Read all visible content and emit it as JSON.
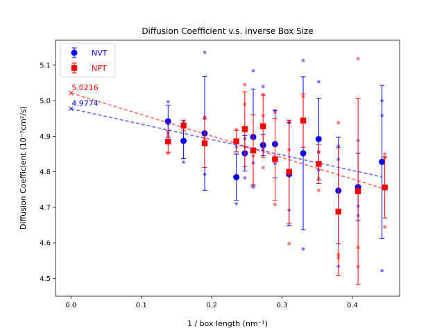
{
  "chart_data": {
    "type": "scatter",
    "title": "Diffusion Coefficient v.s. inverse Box Size",
    "xlabel": "1 / box length (nm⁻¹)",
    "ylabel": "Diffusion Coefficient (10⁻⁵cm²/s)",
    "xlim": [
      -0.022,
      0.467
    ],
    "ylim": [
      4.45,
      5.17
    ],
    "xticks": [
      0.0,
      0.1,
      0.2,
      0.3,
      0.4
    ],
    "yticks": [
      4.5,
      4.6,
      4.7,
      4.8,
      4.9,
      5.0,
      5.1
    ],
    "legend_position": "top-left",
    "series": [
      {
        "name": "NVT",
        "color": "#0000ff",
        "marker": "circle",
        "mean": [
          {
            "x": 0.138,
            "y": 4.942,
            "err": 0.045
          },
          {
            "x": 0.16,
            "y": 4.887,
            "err": 0.05
          },
          {
            "x": 0.19,
            "y": 4.908,
            "err": 0.16
          },
          {
            "x": 0.235,
            "y": 4.785,
            "err": 0.065
          },
          {
            "x": 0.247,
            "y": 4.852,
            "err": 0.05
          },
          {
            "x": 0.259,
            "y": 4.898,
            "err": 0.135
          },
          {
            "x": 0.273,
            "y": 4.875,
            "err": 0.03
          },
          {
            "x": 0.29,
            "y": 4.878,
            "err": 0.095
          },
          {
            "x": 0.31,
            "y": 4.793,
            "err": 0.145
          },
          {
            "x": 0.33,
            "y": 4.852,
            "err": 0.215
          },
          {
            "x": 0.352,
            "y": 4.892,
            "err": 0.115
          },
          {
            "x": 0.38,
            "y": 4.747,
            "err": 0.15
          },
          {
            "x": 0.408,
            "y": 4.757,
            "err": 0.095
          },
          {
            "x": 0.442,
            "y": 4.828,
            "err": 0.215
          }
        ],
        "raw": [
          {
            "x": 0.138,
            "y": 4.997
          },
          {
            "x": 0.138,
            "y": 4.935
          },
          {
            "x": 0.138,
            "y": 4.91
          },
          {
            "x": 0.16,
            "y": 4.942
          },
          {
            "x": 0.16,
            "y": 4.827
          },
          {
            "x": 0.19,
            "y": 5.136
          },
          {
            "x": 0.19,
            "y": 4.952
          },
          {
            "x": 0.19,
            "y": 4.793
          },
          {
            "x": 0.235,
            "y": 4.71
          },
          {
            "x": 0.235,
            "y": 4.87
          },
          {
            "x": 0.247,
            "y": 4.893
          },
          {
            "x": 0.247,
            "y": 4.783
          },
          {
            "x": 0.259,
            "y": 5.084
          },
          {
            "x": 0.259,
            "y": 4.757
          },
          {
            "x": 0.259,
            "y": 4.825
          },
          {
            "x": 0.273,
            "y": 5.04
          },
          {
            "x": 0.273,
            "y": 4.862
          },
          {
            "x": 0.29,
            "y": 4.972
          },
          {
            "x": 0.29,
            "y": 4.823
          },
          {
            "x": 0.31,
            "y": 4.938
          },
          {
            "x": 0.31,
            "y": 4.692
          },
          {
            "x": 0.33,
            "y": 5.113
          },
          {
            "x": 0.33,
            "y": 4.583
          },
          {
            "x": 0.33,
            "y": 4.85
          },
          {
            "x": 0.352,
            "y": 5.053
          },
          {
            "x": 0.352,
            "y": 4.805
          },
          {
            "x": 0.352,
            "y": 4.855
          },
          {
            "x": 0.38,
            "y": 4.872
          },
          {
            "x": 0.38,
            "y": 4.835
          },
          {
            "x": 0.38,
            "y": 4.534
          },
          {
            "x": 0.408,
            "y": 4.888
          },
          {
            "x": 0.408,
            "y": 4.703
          },
          {
            "x": 0.408,
            "y": 4.677
          },
          {
            "x": 0.442,
            "y": 5.0
          },
          {
            "x": 0.442,
            "y": 4.958
          },
          {
            "x": 0.442,
            "y": 4.522
          }
        ],
        "fit": {
          "intercept": 4.9774,
          "slope": -0.434,
          "x_end": 0.442
        },
        "intercept_label": "4.9774"
      },
      {
        "name": "NPT",
        "color": "#ff0000",
        "marker": "square",
        "mean": [
          {
            "x": 0.138,
            "y": 4.885,
            "err": 0.03
          },
          {
            "x": 0.16,
            "y": 4.93,
            "err": 0.015
          },
          {
            "x": 0.19,
            "y": 4.88,
            "err": 0.068
          },
          {
            "x": 0.235,
            "y": 4.886,
            "err": 0.03
          },
          {
            "x": 0.247,
            "y": 4.92,
            "err": 0.105
          },
          {
            "x": 0.259,
            "y": 4.86,
            "err": 0.1
          },
          {
            "x": 0.273,
            "y": 4.928,
            "err": 0.088
          },
          {
            "x": 0.29,
            "y": 4.835,
            "err": 0.115
          },
          {
            "x": 0.31,
            "y": 4.8,
            "err": 0.145
          },
          {
            "x": 0.33,
            "y": 4.944,
            "err": 0.075
          },
          {
            "x": 0.352,
            "y": 4.822,
            "err": 0.055
          },
          {
            "x": 0.38,
            "y": 4.688,
            "err": 0.18
          },
          {
            "x": 0.408,
            "y": 4.745,
            "err": 0.262
          },
          {
            "x": 0.446,
            "y": 4.756,
            "err": 0.086
          }
        ],
        "raw": [
          {
            "x": 0.138,
            "y": 4.852
          },
          {
            "x": 0.138,
            "y": 4.903
          },
          {
            "x": 0.16,
            "y": 4.925
          },
          {
            "x": 0.19,
            "y": 4.953
          },
          {
            "x": 0.19,
            "y": 4.893
          },
          {
            "x": 0.235,
            "y": 4.919
          },
          {
            "x": 0.235,
            "y": 4.887
          },
          {
            "x": 0.247,
            "y": 5.045
          },
          {
            "x": 0.247,
            "y": 4.99
          },
          {
            "x": 0.247,
            "y": 4.87
          },
          {
            "x": 0.259,
            "y": 4.863
          },
          {
            "x": 0.259,
            "y": 4.845
          },
          {
            "x": 0.273,
            "y": 5.017
          },
          {
            "x": 0.273,
            "y": 4.958
          },
          {
            "x": 0.273,
            "y": 4.812
          },
          {
            "x": 0.29,
            "y": 4.967
          },
          {
            "x": 0.29,
            "y": 4.708
          },
          {
            "x": 0.31,
            "y": 4.94
          },
          {
            "x": 0.31,
            "y": 4.862
          },
          {
            "x": 0.31,
            "y": 4.598
          },
          {
            "x": 0.33,
            "y": 5.012
          },
          {
            "x": 0.33,
            "y": 4.948
          },
          {
            "x": 0.352,
            "y": 4.856
          },
          {
            "x": 0.352,
            "y": 4.782
          },
          {
            "x": 0.352,
            "y": 4.748
          },
          {
            "x": 0.38,
            "y": 4.938
          },
          {
            "x": 0.38,
            "y": 4.567
          },
          {
            "x": 0.38,
            "y": 4.558
          },
          {
            "x": 0.408,
            "y": 5.118
          },
          {
            "x": 0.408,
            "y": 4.587
          },
          {
            "x": 0.408,
            "y": 4.533
          },
          {
            "x": 0.446,
            "y": 4.85
          },
          {
            "x": 0.446,
            "y": 4.84
          },
          {
            "x": 0.446,
            "y": 4.645
          }
        ],
        "fit": {
          "intercept": 5.0216,
          "slope": -0.605,
          "x_end": 0.446
        },
        "intercept_label": "5.0216"
      }
    ]
  }
}
